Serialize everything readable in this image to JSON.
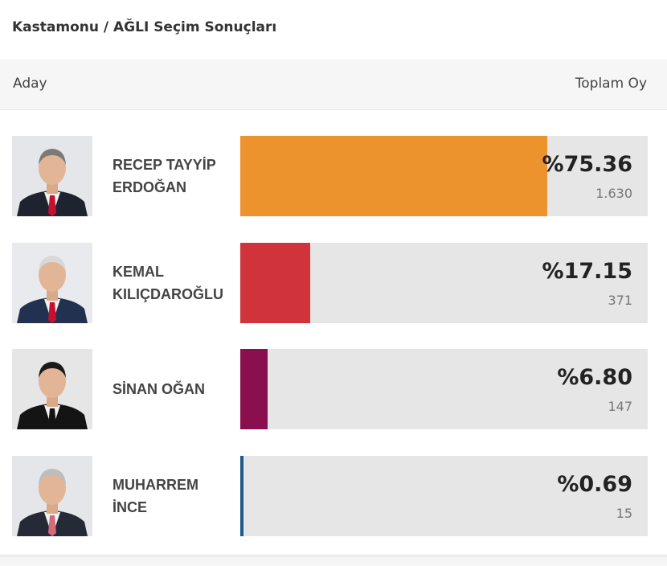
{
  "page": {
    "title": "Kastamonu / AĞLI Seçim Sonuçları"
  },
  "header": {
    "left": "Aday",
    "right": "Toplam Oy"
  },
  "chart_data": {
    "type": "bar",
    "orientation": "horizontal",
    "max": 100,
    "categories": [
      "RECEP TAYYİP ERDOĞAN",
      "KEMAL KILIÇDAROĞLU",
      "SİNAN OĞAN",
      "MUHARREM İNCE"
    ],
    "values": [
      75.36,
      17.15,
      6.8,
      0.69
    ],
    "items": [
      {
        "name_line1": "RECEP TAYYİP",
        "name_line2": "ERDOĞAN",
        "percent": 75.36,
        "percent_label": "%75.36",
        "votes": "1.630",
        "color": "#ec932e",
        "avatar_bg": "#e4e6ea",
        "suit": "#1f2330",
        "tie": "#c8102e",
        "hair": "#7d7a76"
      },
      {
        "name_line1": "KEMAL",
        "name_line2": "KILIÇDAROĞLU",
        "percent": 17.15,
        "percent_label": "%17.15",
        "votes": "371",
        "color": "#d0343a",
        "avatar_bg": "#e8eaee",
        "suit": "#22314f",
        "tie": "#c8102e",
        "hair": "#d8d8d8"
      },
      {
        "name_line1": "SİNAN OĞAN",
        "name_line2": "",
        "percent": 6.8,
        "percent_label": "%6.80",
        "votes": "147",
        "color": "#8a0f4e",
        "avatar_bg": "#e6e6e6",
        "suit": "#141414",
        "tie": "#141414",
        "hair": "#1a1a1a"
      },
      {
        "name_line1": "MUHARREM",
        "name_line2": "İNCE",
        "percent": 0.69,
        "percent_label": "%0.69",
        "votes": "15",
        "color": "#1d5a8c",
        "avatar_bg": "#e4e6ea",
        "suit": "#252a36",
        "tie": "#d46a7a",
        "hair": "#bdbdbd"
      }
    ]
  }
}
